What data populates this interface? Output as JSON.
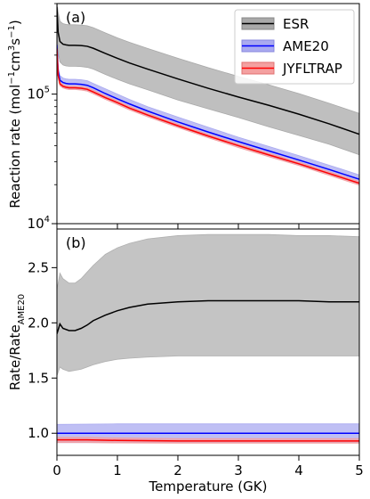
{
  "chart_data": [
    {
      "type": "line",
      "panel_label": "(a)",
      "xlabel": "",
      "ylabel_main": "Reaction rate (mol",
      "ylabel_sup1": "−1",
      "ylabel_mid": "cm",
      "ylabel_sup2": "3",
      "ylabel_mid2": "s",
      "ylabel_sup3": "−1",
      "ylabel_end": ")",
      "yscale": "log",
      "xlim": [
        0,
        5
      ],
      "ylim": [
        10000,
        500000
      ],
      "y_ticks": [
        {
          "value": 10000,
          "base": "10",
          "exp": "4"
        },
        {
          "value": 100000,
          "base": "10",
          "exp": "5"
        }
      ],
      "legend_position": "top-right",
      "series": [
        {
          "name": "ESR",
          "color": "#000000",
          "band_color": "#a9a9a9",
          "x": [
            0,
            0.02,
            0.05,
            0.1,
            0.15,
            0.2,
            0.3,
            0.4,
            0.5,
            0.6,
            0.8,
            1.0,
            1.2,
            1.5,
            2.0,
            2.5,
            3.0,
            3.5,
            4.0,
            4.5,
            5.0
          ],
          "values": [
            470000,
            300000,
            255000,
            243000,
            240000,
            238000,
            238000,
            237000,
            234000,
            226000,
            206000,
            189000,
            174000,
            156000,
            131000,
            111000,
            95000,
            82000,
            70000,
            59000,
            49000
          ],
          "lower": [
            330000,
            210000,
            177000,
            168000,
            165000,
            164000,
            164000,
            163000,
            161000,
            156000,
            142000,
            130000,
            120000,
            108000,
            90000,
            77000,
            66000,
            56000,
            48000,
            41000,
            34000
          ],
          "upper": [
            520000,
            430000,
            365000,
            350000,
            345000,
            343000,
            343000,
            341000,
            337000,
            326000,
            297000,
            272000,
            251000,
            225000,
            189000,
            160000,
            137000,
            118000,
            101000,
            85000,
            71000
          ]
        },
        {
          "name": "AME20",
          "color": "#0000ff",
          "band_color": "#aaaaf0",
          "x": [
            0,
            0.02,
            0.05,
            0.1,
            0.15,
            0.2,
            0.3,
            0.4,
            0.5,
            0.6,
            0.8,
            1.0,
            1.2,
            1.5,
            2.0,
            2.5,
            3.0,
            3.5,
            4.0,
            4.5,
            5.0
          ],
          "values": [
            240000,
            150000,
            128000,
            123000,
            121000,
            120000,
            120000,
            119000,
            117000,
            112000,
            101000,
            92000,
            84000,
            74000,
            61000,
            51000,
            43000,
            36500,
            31000,
            26200,
            22000
          ],
          "lower": [
            220000,
            138000,
            118000,
            113000,
            111000,
            110000,
            110000,
            109000,
            107000,
            103000,
            93000,
            85000,
            77000,
            68000,
            56000,
            47000,
            39500,
            33500,
            28500,
            24100,
            20200
          ],
          "upper": [
            260000,
            162000,
            139000,
            133000,
            131000,
            130000,
            130000,
            129000,
            127000,
            121000,
            110000,
            100000,
            91000,
            80000,
            66500,
            55500,
            46500,
            39500,
            33500,
            28300,
            23800
          ]
        },
        {
          "name": "JYFLTRAP",
          "color": "#ff0000",
          "band_color": "#f4a0a0",
          "x": [
            0,
            0.02,
            0.05,
            0.1,
            0.15,
            0.2,
            0.3,
            0.4,
            0.5,
            0.6,
            0.8,
            1.0,
            1.2,
            1.5,
            2.0,
            2.5,
            3.0,
            3.5,
            4.0,
            4.5,
            5.0
          ],
          "values": [
            225000,
            140000,
            120000,
            115000,
            113000,
            112000,
            112000,
            111000,
            109000,
            104000,
            94000,
            86000,
            78000,
            69000,
            57000,
            47500,
            40000,
            34000,
            29000,
            24400,
            20500
          ],
          "lower": [
            218000,
            135500,
            116000,
            111500,
            109500,
            108500,
            108500,
            107500,
            105500,
            100500,
            91000,
            83000,
            75500,
            66800,
            55200,
            46000,
            38700,
            32900,
            28100,
            23600,
            19800
          ],
          "upper": [
            232000,
            144500,
            124000,
            118500,
            116500,
            115500,
            115500,
            114500,
            112500,
            107500,
            97000,
            89000,
            80500,
            71200,
            58800,
            49000,
            41300,
            35100,
            29900,
            25200,
            21200
          ]
        }
      ]
    },
    {
      "type": "line",
      "panel_label": "(b)",
      "xlabel": "Temperature (GK)",
      "ylabel_main": "Rate/Rate",
      "ylabel_sub": "AME20",
      "yscale": "linear",
      "xlim": [
        0,
        5
      ],
      "ylim": [
        0.8,
        2.85
      ],
      "x_ticks": [
        0,
        1,
        2,
        3,
        4,
        5
      ],
      "y_ticks": [
        1.0,
        1.5,
        2.0,
        2.5
      ],
      "x_tick_labels": [
        "0",
        "1",
        "2",
        "3",
        "4",
        "5"
      ],
      "y_tick_labels": [
        "1.0",
        "1.5",
        "2.0",
        "2.5"
      ],
      "series": [
        {
          "name": "ESR",
          "color": "#000000",
          "band_color": "#b0b0b0",
          "x": [
            0,
            0.05,
            0.1,
            0.2,
            0.3,
            0.4,
            0.5,
            0.6,
            0.8,
            1.0,
            1.2,
            1.5,
            2.0,
            2.5,
            3.0,
            3.5,
            4.0,
            4.5,
            5.0
          ],
          "values": [
            1.9,
            1.99,
            1.95,
            1.93,
            1.93,
            1.95,
            1.98,
            2.02,
            2.07,
            2.11,
            2.14,
            2.17,
            2.19,
            2.2,
            2.2,
            2.2,
            2.2,
            2.19,
            2.19
          ],
          "lower": [
            1.52,
            1.6,
            1.58,
            1.56,
            1.57,
            1.58,
            1.6,
            1.62,
            1.65,
            1.67,
            1.68,
            1.69,
            1.7,
            1.7,
            1.7,
            1.7,
            1.7,
            1.7,
            1.7
          ],
          "upper": [
            2.3,
            2.45,
            2.4,
            2.36,
            2.36,
            2.4,
            2.46,
            2.52,
            2.62,
            2.68,
            2.72,
            2.76,
            2.79,
            2.8,
            2.8,
            2.8,
            2.79,
            2.79,
            2.78
          ]
        },
        {
          "name": "AME20",
          "color": "#0000ff",
          "band_color": "#aaaaf0",
          "x": [
            0,
            1,
            2,
            3,
            4,
            5
          ],
          "values": [
            1.0,
            1.0,
            1.0,
            1.0,
            1.0,
            1.0
          ],
          "lower": [
            0.915,
            0.915,
            0.915,
            0.915,
            0.915,
            0.915
          ],
          "upper": [
            1.08,
            1.085,
            1.085,
            1.085,
            1.085,
            1.085
          ]
        },
        {
          "name": "JYFLTRAP",
          "color": "#ff0000",
          "band_color": "#f4a0a0",
          "x": [
            0,
            0.5,
            1,
            2,
            3,
            4,
            5
          ],
          "values": [
            0.94,
            0.94,
            0.935,
            0.93,
            0.93,
            0.93,
            0.93
          ],
          "lower": [
            0.915,
            0.915,
            0.912,
            0.91,
            0.91,
            0.91,
            0.91
          ],
          "upper": [
            0.963,
            0.963,
            0.958,
            0.952,
            0.952,
            0.952,
            0.952
          ]
        }
      ]
    }
  ]
}
